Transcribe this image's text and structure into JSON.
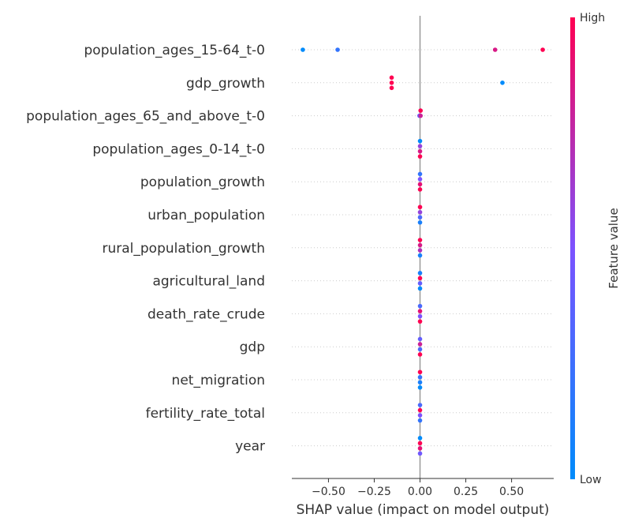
{
  "chart_data": {
    "type": "scatter",
    "subtype": "shap_beeswarm",
    "title": "",
    "xlabel": "SHAP value (impact on model output)",
    "ylabel": "",
    "xlim": [
      -0.7,
      0.73
    ],
    "xticks": [
      -0.5,
      -0.25,
      0.0,
      0.25,
      0.5
    ],
    "xtick_labels": [
      "−0.50",
      "−0.25",
      "0.00",
      "0.25",
      "0.50"
    ],
    "zero_line": true,
    "grid": false,
    "colorbar": {
      "title": "Feature value",
      "high_label": "High",
      "low_label": "Low",
      "low_color": "#008bfb",
      "mid_color": "#7c52ff",
      "high_color": "#ff0052",
      "placement": "right"
    },
    "features": [
      {
        "name": "population_ages_15-64_t-0",
        "points": [
          {
            "x": -0.64,
            "dy": 0,
            "c": 0.0
          },
          {
            "x": -0.45,
            "dy": 0,
            "c": 0.2
          },
          {
            "x": 0.41,
            "dy": 0,
            "c": 0.85
          },
          {
            "x": 0.67,
            "dy": 0,
            "c": 1.0
          }
        ]
      },
      {
        "name": "gdp_growth",
        "points": [
          {
            "x": -0.155,
            "dy": -1,
            "c": 1.0
          },
          {
            "x": -0.155,
            "dy": 0,
            "c": 1.0
          },
          {
            "x": -0.155,
            "dy": 1,
            "c": 1.0
          },
          {
            "x": 0.45,
            "dy": 0,
            "c": 0.0
          }
        ]
      },
      {
        "name": "population_ages_65_and_above_t-0",
        "points": [
          {
            "x": 0.003,
            "dy": -1,
            "c": 1.0
          },
          {
            "x": -0.003,
            "dy": 0,
            "c": 0.4
          },
          {
            "x": 0.003,
            "dy": 0,
            "c": 0.8
          }
        ]
      },
      {
        "name": "population_ages_0-14_t-0",
        "points": [
          {
            "x": 0.0,
            "dy": -1.5,
            "c": 0.0
          },
          {
            "x": 0.0,
            "dy": -0.5,
            "c": 0.6
          },
          {
            "x": 0.0,
            "dy": 0.5,
            "c": 0.85
          },
          {
            "x": 0.0,
            "dy": 1.5,
            "c": 1.0
          }
        ]
      },
      {
        "name": "population_growth",
        "points": [
          {
            "x": 0.0,
            "dy": -1.5,
            "c": 0.2
          },
          {
            "x": 0.0,
            "dy": -0.5,
            "c": 0.5
          },
          {
            "x": 0.0,
            "dy": 0.5,
            "c": 0.9
          },
          {
            "x": 0.0,
            "dy": 1.5,
            "c": 1.0
          }
        ]
      },
      {
        "name": "urban_population",
        "points": [
          {
            "x": 0.0,
            "dy": -1.5,
            "c": 1.0
          },
          {
            "x": 0.0,
            "dy": -0.5,
            "c": 0.6
          },
          {
            "x": 0.0,
            "dy": 0.5,
            "c": 0.3
          },
          {
            "x": 0.0,
            "dy": 1.5,
            "c": 0.1
          }
        ]
      },
      {
        "name": "rural_population_growth",
        "points": [
          {
            "x": 0.0,
            "dy": -1.5,
            "c": 1.0
          },
          {
            "x": 0.0,
            "dy": -0.5,
            "c": 0.85
          },
          {
            "x": 0.0,
            "dy": 0.5,
            "c": 0.7
          },
          {
            "x": 0.0,
            "dy": 1.5,
            "c": 0.1
          }
        ]
      },
      {
        "name": "agricultural_land",
        "points": [
          {
            "x": 0.0,
            "dy": -1.5,
            "c": 0.1
          },
          {
            "x": 0.0,
            "dy": -0.5,
            "c": 1.0
          },
          {
            "x": 0.0,
            "dy": 0.5,
            "c": 0.4
          },
          {
            "x": 0.0,
            "dy": 1.5,
            "c": 0.0
          }
        ]
      },
      {
        "name": "death_rate_crude",
        "points": [
          {
            "x": 0.0,
            "dy": -1.5,
            "c": 0.3
          },
          {
            "x": 0.0,
            "dy": -0.5,
            "c": 0.9
          },
          {
            "x": 0.0,
            "dy": 0.5,
            "c": 0.5
          },
          {
            "x": 0.0,
            "dy": 1.5,
            "c": 1.0
          }
        ]
      },
      {
        "name": "gdp",
        "points": [
          {
            "x": 0.0,
            "dy": -1.5,
            "c": 0.4
          },
          {
            "x": 0.0,
            "dy": -0.5,
            "c": 0.8
          },
          {
            "x": 0.0,
            "dy": 0.5,
            "c": 0.3
          },
          {
            "x": 0.0,
            "dy": 1.5,
            "c": 1.0
          }
        ]
      },
      {
        "name": "net_migration",
        "points": [
          {
            "x": 0.0,
            "dy": -1.5,
            "c": 1.0
          },
          {
            "x": 0.0,
            "dy": -0.5,
            "c": 0.2
          },
          {
            "x": 0.0,
            "dy": 0.5,
            "c": 0.1
          },
          {
            "x": 0.0,
            "dy": 1.5,
            "c": 0.0
          }
        ]
      },
      {
        "name": "fertility_rate_total",
        "points": [
          {
            "x": 0.0,
            "dy": -1.5,
            "c": 0.3
          },
          {
            "x": 0.0,
            "dy": -0.5,
            "c": 1.0
          },
          {
            "x": 0.0,
            "dy": 0.5,
            "c": 0.5
          },
          {
            "x": 0.0,
            "dy": 1.5,
            "c": 0.2
          }
        ]
      },
      {
        "name": "year",
        "points": [
          {
            "x": 0.0,
            "dy": -1.5,
            "c": 0.0
          },
          {
            "x": 0.0,
            "dy": -0.5,
            "c": 1.0
          },
          {
            "x": 0.0,
            "dy": 0.5,
            "c": 0.9
          },
          {
            "x": 0.0,
            "dy": 1.5,
            "c": 0.45
          }
        ]
      }
    ]
  }
}
